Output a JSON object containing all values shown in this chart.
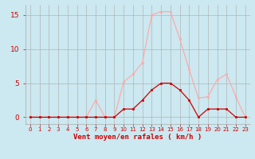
{
  "x": [
    0,
    1,
    2,
    3,
    4,
    5,
    6,
    7,
    8,
    9,
    10,
    11,
    12,
    13,
    14,
    15,
    16,
    17,
    18,
    19,
    20,
    21,
    22,
    23
  ],
  "y_rafales": [
    0,
    0,
    0,
    0,
    0,
    0,
    0,
    2.5,
    0,
    0,
    5.2,
    6.3,
    8.0,
    15.0,
    15.5,
    15.5,
    11.5,
    7.0,
    2.8,
    3.0,
    5.5,
    6.3,
    3.0,
    0
  ],
  "y_moyen": [
    0,
    0,
    0,
    0,
    0,
    0,
    0,
    0,
    0,
    0,
    1.2,
    1.2,
    2.5,
    4.0,
    5.0,
    5.0,
    4.0,
    2.5,
    0,
    1.2,
    1.2,
    1.2,
    0,
    0
  ],
  "color_rafales": "#ffaaaa",
  "color_moyen": "#cc0000",
  "bg_color": "#cce8f0",
  "grid_color": "#aaaaaa",
  "tick_color": "#cc0000",
  "xlabel": "Vent moyen/en rafales ( km/h )",
  "xlabel_color": "#cc0000",
  "yticks": [
    0,
    5,
    10,
    15
  ],
  "ylim": [
    -1,
    16.5
  ],
  "xlim": [
    -0.5,
    23.5
  ]
}
